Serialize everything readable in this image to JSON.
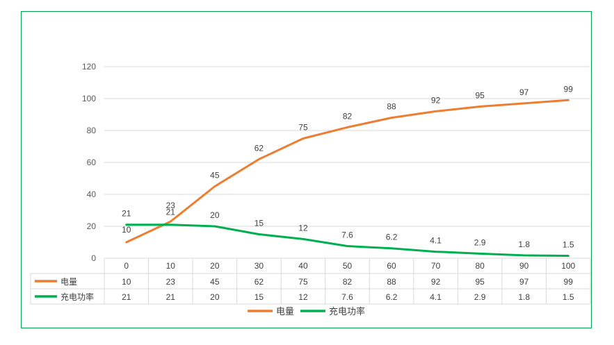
{
  "chart_data": {
    "type": "line",
    "categories": [
      "0",
      "10",
      "20",
      "30",
      "40",
      "50",
      "60",
      "70",
      "80",
      "90",
      "100"
    ],
    "ylim": [
      0,
      120
    ],
    "yticks": [
      0,
      20,
      40,
      60,
      80,
      100,
      120
    ],
    "grid": true,
    "legend_position": "bottom",
    "data_table": true,
    "series": [
      {
        "name": "电量",
        "color": "#ed7d31",
        "values": [
          10,
          23,
          45,
          62,
          75,
          82,
          88,
          92,
          95,
          97,
          99
        ],
        "labels": [
          "10",
          "23",
          "45",
          "62",
          "75",
          "82",
          "88",
          "92",
          "95",
          "97",
          "99"
        ]
      },
      {
        "name": "充电功率",
        "color": "#00b050",
        "values": [
          21,
          21,
          20,
          15,
          12,
          7.6,
          6.2,
          4.1,
          2.9,
          1.8,
          1.5
        ],
        "labels": [
          "21",
          "21",
          "20",
          "15",
          "12",
          "7.6",
          "6.2",
          "4.1",
          "2.9",
          "1.8",
          "1.5"
        ]
      }
    ]
  }
}
